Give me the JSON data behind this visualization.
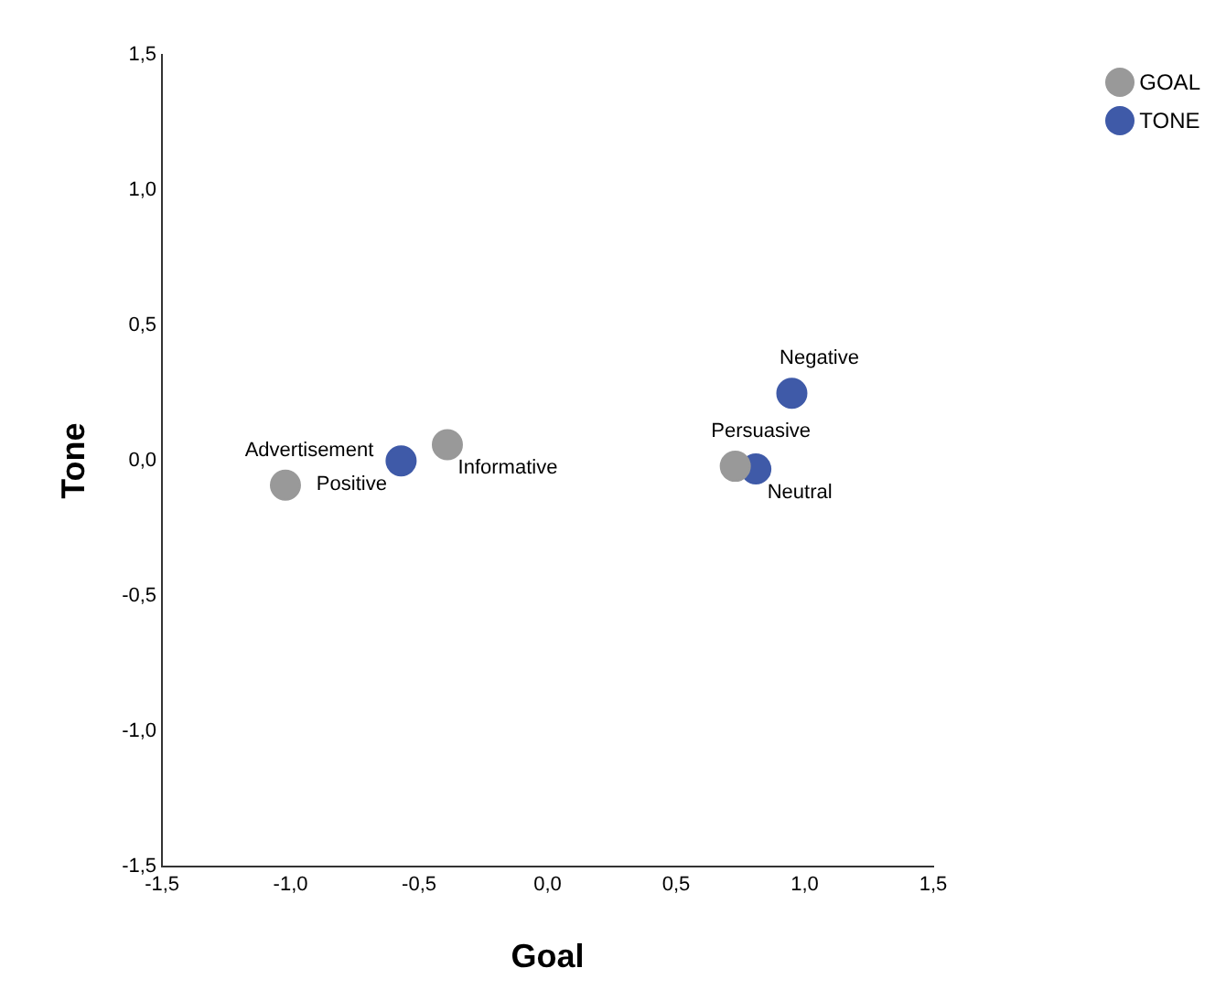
{
  "chart_data": {
    "type": "scatter",
    "xlabel": "Goal",
    "ylabel": "Tone",
    "series": [
      {
        "name": "GOAL",
        "color": "#999999",
        "x": [
          -1.02,
          -0.39,
          0.73
        ],
        "values": [
          -0.09,
          0.06,
          -0.02
        ]
      },
      {
        "name": "TONE",
        "color": "#3f5aa8",
        "x": [
          -0.57,
          0.95,
          0.81
        ],
        "values": [
          0.0,
          0.25,
          -0.03
        ]
      }
    ],
    "annotations": [
      {
        "text": "Advertisement",
        "x": -1.02,
        "y": -0.09
      },
      {
        "text": "Informative",
        "x": -0.39,
        "y": 0.06
      },
      {
        "text": "Persuasive",
        "x": 0.73,
        "y": -0.02
      },
      {
        "text": "Positive",
        "x": -0.57,
        "y": 0.0
      },
      {
        "text": "Negative",
        "x": 0.95,
        "y": 0.25
      },
      {
        "text": "Neutral",
        "x": 0.81,
        "y": -0.03
      }
    ],
    "xlim": [
      -1.5,
      1.5
    ],
    "ylim": [
      -1.5,
      1.5
    ],
    "xticks": [
      {
        "value": -1.5,
        "label": "-1,5"
      },
      {
        "value": -1.0,
        "label": "-1,0"
      },
      {
        "value": -0.5,
        "label": "-0,5"
      },
      {
        "value": 0,
        "label": "0,0"
      },
      {
        "value": 0.5,
        "label": "0,5"
      },
      {
        "value": 1.0,
        "label": "1,0"
      },
      {
        "value": 1.5,
        "label": "1,5"
      }
    ],
    "yticks": [
      {
        "value": -1.5,
        "label": "-1,5"
      },
      {
        "value": -1.0,
        "label": "-1,0"
      },
      {
        "value": -0.5,
        "label": "-0,5"
      },
      {
        "value": 0,
        "label": "0,0"
      },
      {
        "value": 0.5,
        "label": "0,5"
      },
      {
        "value": 1.0,
        "label": "1,0"
      },
      {
        "value": 1.5,
        "label": "1,5"
      }
    ],
    "grid": false,
    "legend": "top right",
    "marker": "circle"
  }
}
